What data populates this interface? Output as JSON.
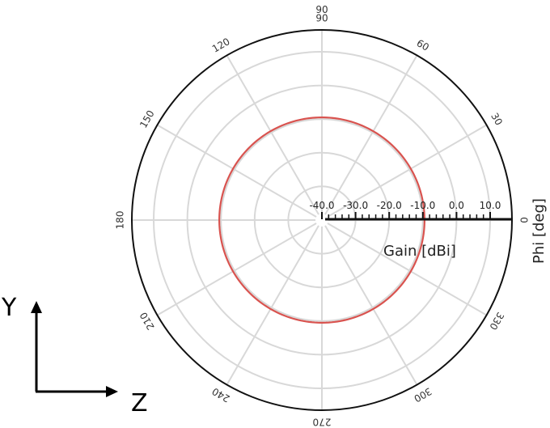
{
  "chart_data": {
    "type": "polar-line",
    "angle_axis": {
      "title": "Phi [deg]",
      "ticks": [
        "0",
        "30",
        "60",
        "90",
        "120",
        "150",
        "180",
        "210",
        "240",
        "270",
        "300",
        "330"
      ],
      "top_overlap_label": "90"
    },
    "radial_axis": {
      "title": "Gain [dBi]",
      "range": [
        -40,
        10
      ],
      "ticks": [
        "-40.0",
        "-30.0",
        "-20.0",
        "-10.0",
        "0.0",
        "10.0"
      ]
    },
    "series": [
      {
        "color": "#d9534f",
        "constant_gain_dbi": -9.5,
        "phi_range_deg": [
          -16,
          360
        ]
      }
    ],
    "grid": true
  },
  "axes_indicator": {
    "vertical": "Y",
    "horizontal": "Z"
  }
}
